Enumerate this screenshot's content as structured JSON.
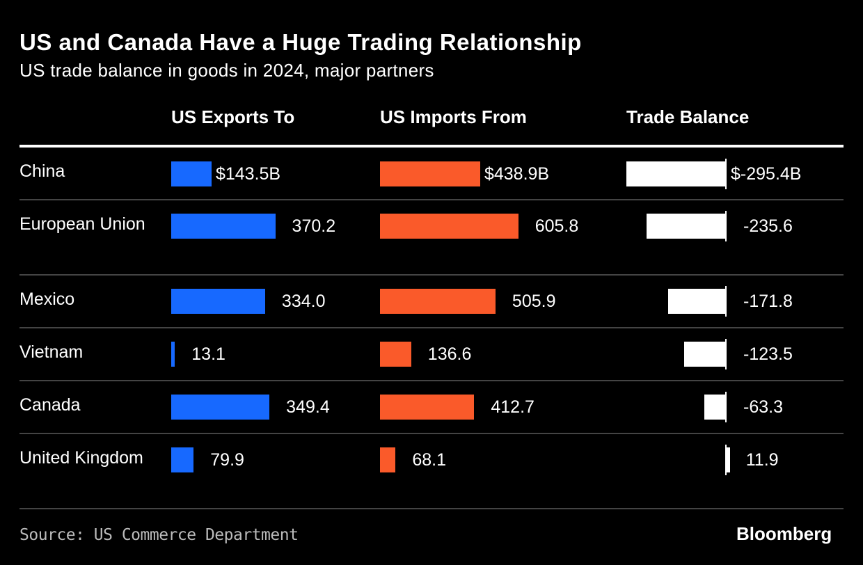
{
  "title": "US and Canada Have a Huge Trading Relationship",
  "subtitle": "US trade balance in goods in 2024, major partners",
  "source": "Source: US Commerce Department",
  "logo": "Bloomberg",
  "colors": {
    "exports": "#1769ff",
    "imports": "#fa5a2a",
    "balance": "#ffffff"
  },
  "chart_data": {
    "type": "bar",
    "columns": [
      "US Exports To",
      "US Imports From",
      "Trade Balance"
    ],
    "unit": "$B",
    "categories": [
      "China",
      "European Union",
      "Mexico",
      "Vietnam",
      "Canada",
      "United Kingdom"
    ],
    "series": [
      {
        "name": "US Exports To",
        "values": [
          143.5,
          370.2,
          334.0,
          13.1,
          349.4,
          79.9
        ],
        "labels": [
          "$143.5B",
          "370.2",
          "334.0",
          "13.1",
          "349.4",
          "79.9"
        ]
      },
      {
        "name": "US Imports From",
        "values": [
          438.9,
          605.8,
          505.9,
          136.6,
          412.7,
          68.1
        ],
        "labels": [
          "$438.9B",
          "605.8",
          "505.9",
          "136.6",
          "412.7",
          "68.1"
        ]
      },
      {
        "name": "Trade Balance",
        "values": [
          -295.4,
          -235.6,
          -171.8,
          -123.5,
          -63.3,
          11.9
        ],
        "labels": [
          "$-295.4B",
          "-235.6",
          "-171.8",
          "-123.5",
          "-63.3",
          "11.9"
        ]
      }
    ]
  }
}
